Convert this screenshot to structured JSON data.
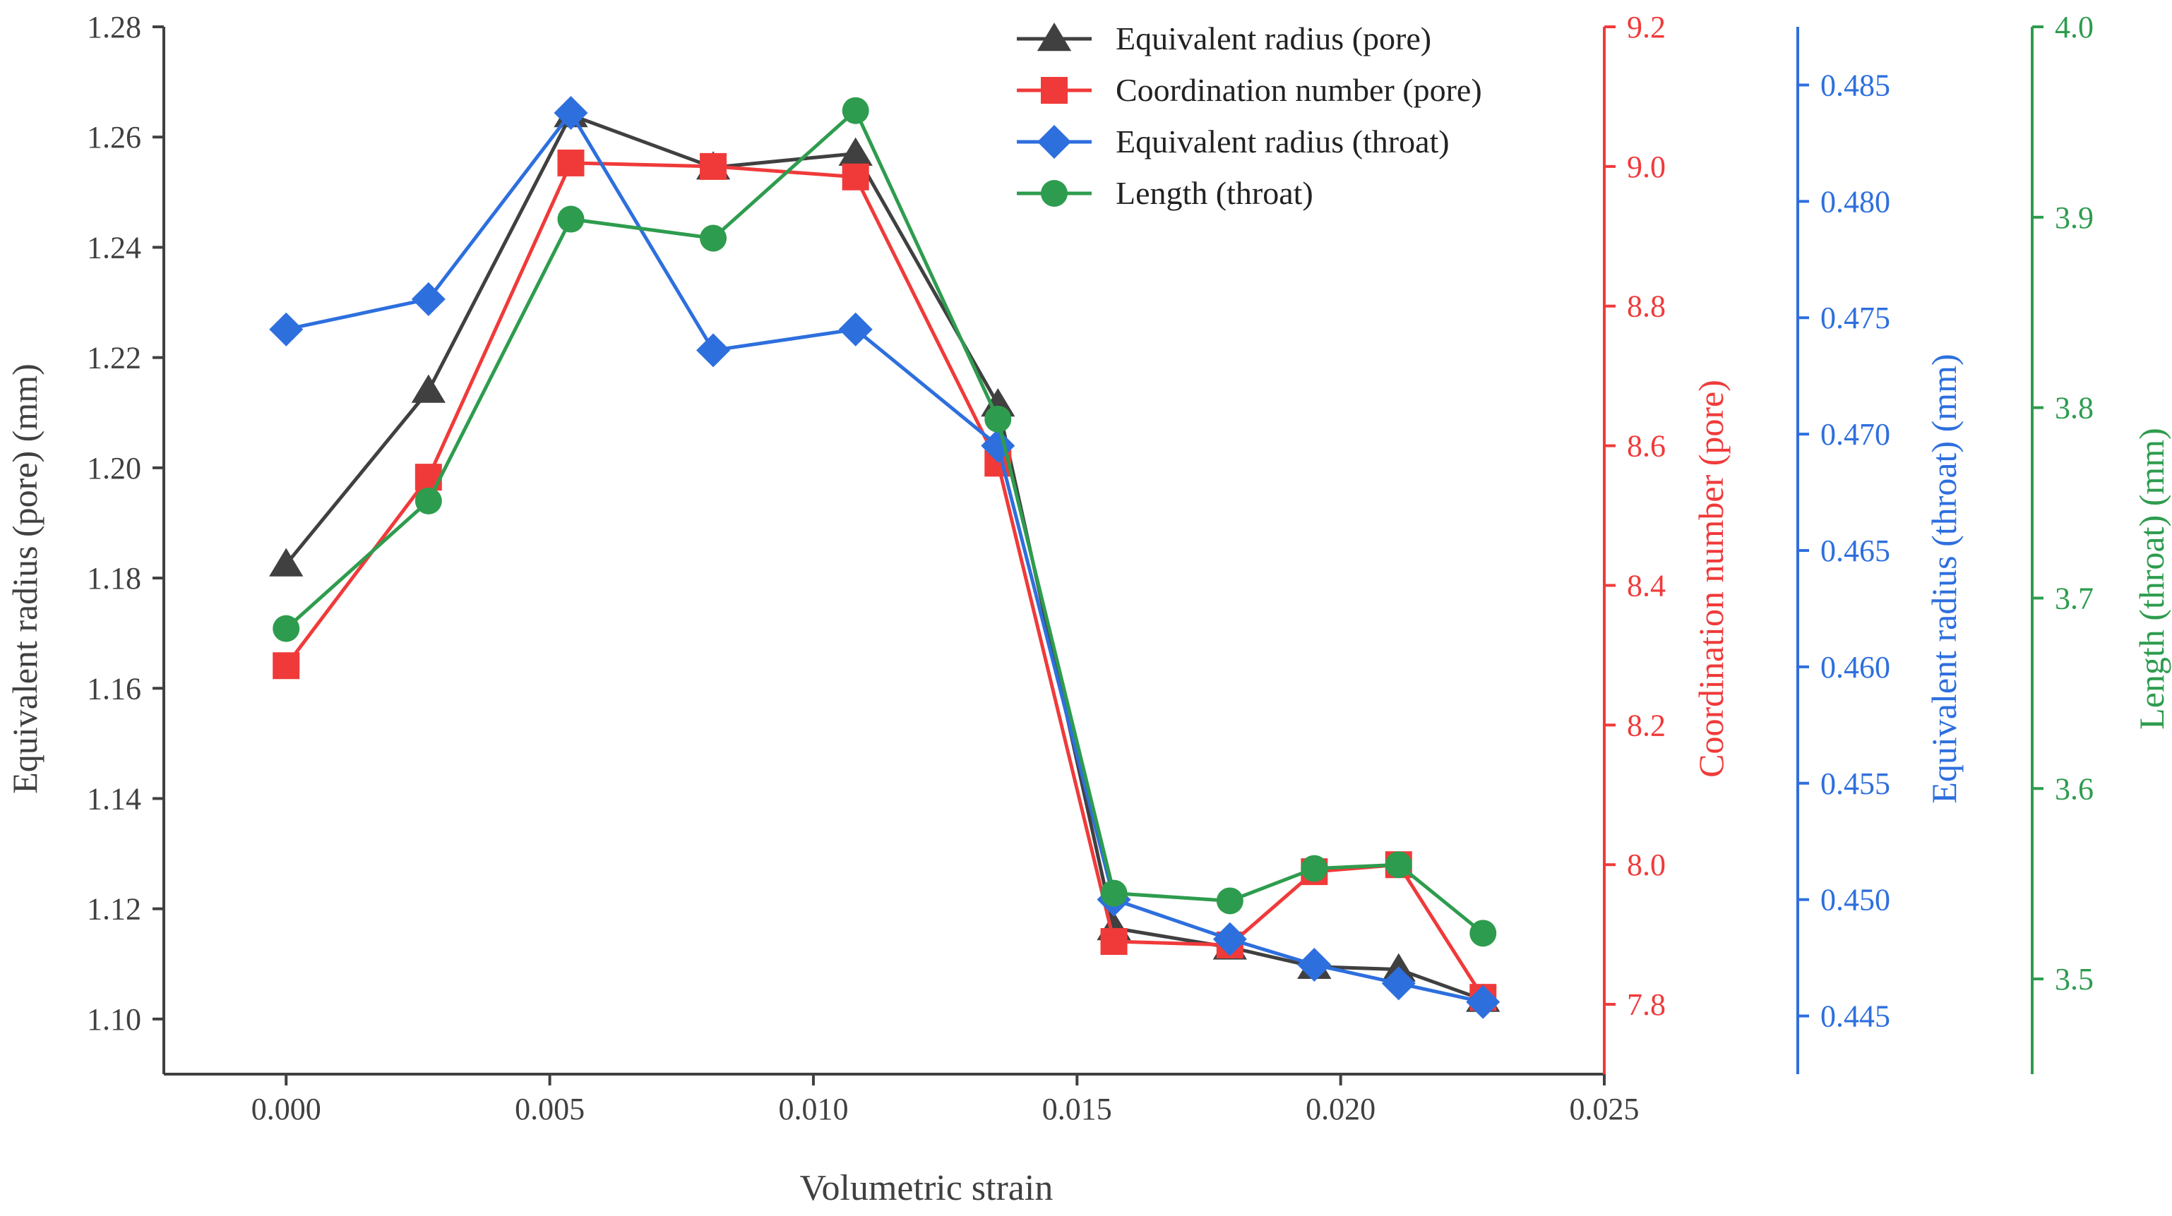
{
  "chart_data": {
    "type": "line",
    "xlabel": "Volumetric strain",
    "x_ticks": [
      "0.000",
      "0.005",
      "0.010",
      "0.015",
      "0.020",
      "0.025"
    ],
    "xlim": [
      -0.00232,
      0.025
    ],
    "x": [
      0.0,
      0.0027,
      0.0054,
      0.0081,
      0.0108,
      0.0135,
      0.0157,
      0.0179,
      0.0195,
      0.0211,
      0.0227
    ],
    "axes": [
      {
        "id": "pore_radius",
        "side": "left",
        "label": "Equivalent radius (pore) (mm)",
        "color": "#404040",
        "ylim": [
          1.09,
          1.28
        ],
        "ticks": [
          "1.10",
          "1.12",
          "1.14",
          "1.16",
          "1.18",
          "1.20",
          "1.22",
          "1.24",
          "1.26",
          "1.28"
        ]
      },
      {
        "id": "coordination",
        "side": "right",
        "label": "Coordination number (pore)",
        "color": "#f03a3a",
        "ylim": [
          7.7,
          9.2
        ],
        "ticks": [
          "7.8",
          "8.0",
          "8.2",
          "8.4",
          "8.6",
          "8.8",
          "9.0",
          "9.2"
        ]
      },
      {
        "id": "throat_radius",
        "side": "right",
        "label": "Equivalent radius (throat) (mm)",
        "color": "#2e6fde",
        "ylim": [
          0.4425,
          0.4875
        ],
        "ticks": [
          "0.445",
          "0.450",
          "0.455",
          "0.460",
          "0.465",
          "0.470",
          "0.475",
          "0.480",
          "0.485"
        ]
      },
      {
        "id": "throat_length",
        "side": "right",
        "label": "Length (throat) (mm)",
        "color": "#2e9c4e",
        "ylim": [
          3.45,
          4.0
        ],
        "ticks": [
          "3.5",
          "3.6",
          "3.7",
          "3.8",
          "3.9",
          "4.0"
        ]
      }
    ],
    "series": [
      {
        "name": "Equivalent radius (pore)",
        "axis": "pore_radius",
        "marker": "triangle",
        "color": "#404040",
        "values": [
          1.1825,
          1.214,
          1.264,
          1.2545,
          1.257,
          1.2115,
          1.1165,
          1.113,
          1.1095,
          1.109,
          1.1035
        ]
      },
      {
        "name": "Coordination number (pore)",
        "axis": "coordination",
        "marker": "square",
        "color": "#f03a3a",
        "values": [
          8.285,
          8.555,
          9.005,
          9.0,
          8.985,
          8.575,
          7.89,
          7.885,
          7.99,
          8.0,
          7.81
        ]
      },
      {
        "name": "Equivalent radius (throat)",
        "axis": "throat_radius",
        "marker": "diamond",
        "color": "#2e6fde",
        "values": [
          0.4745,
          0.4758,
          0.4838,
          0.4736,
          0.4745,
          0.4695,
          0.45,
          0.4483,
          0.4472,
          0.4464,
          0.4456
        ]
      },
      {
        "name": "Length (throat)",
        "axis": "throat_length",
        "marker": "circle",
        "color": "#2e9c4e",
        "values": [
          3.684,
          3.751,
          3.899,
          3.889,
          3.956,
          3.794,
          3.545,
          3.541,
          3.558,
          3.56,
          3.524
        ]
      }
    ],
    "legend_position": "top-right",
    "grid": false
  }
}
